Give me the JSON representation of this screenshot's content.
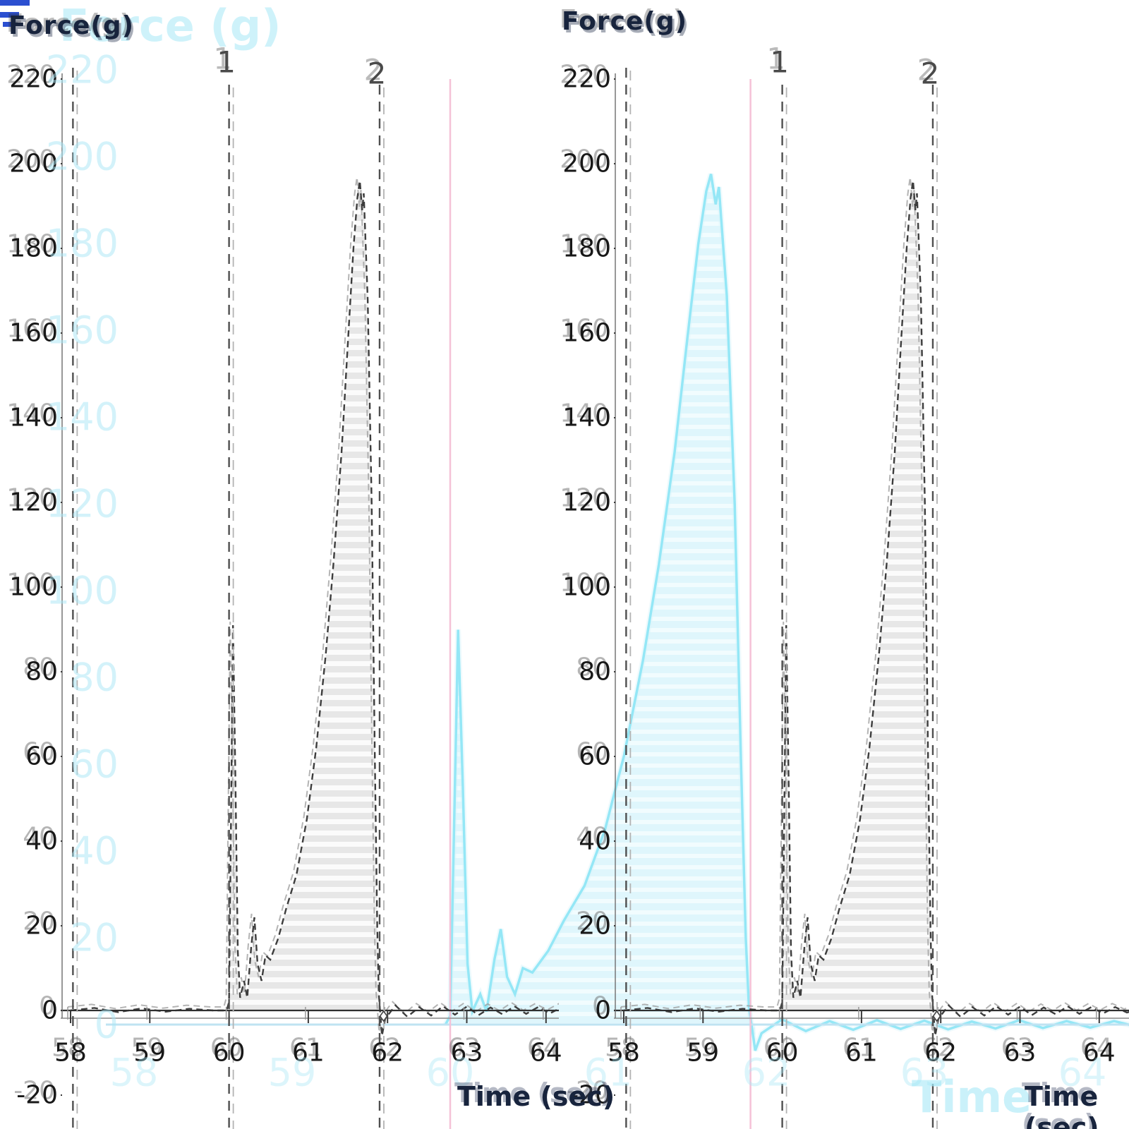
{
  "colors": {
    "background": "#ffffff",
    "curve_stroke": "#3d3d3d",
    "curve_ghost_stroke": "#9b9b9b",
    "gray_fill": "#e6e6e6",
    "gray_fill_alt": "#fbfbfb",
    "cyan_stroke": "#8fe6f5",
    "cyan_fill": "#d9f5fb",
    "cyan_fill_alt": "#eefcfe",
    "pink_line": "#f5c2d7",
    "ghost_axis_line": "#bfe3f2",
    "marker_dash": "#4f4f4f",
    "marker_dash_twin": "#b3b3b3",
    "axis_line": "#2f2f2f",
    "axis_line_twin": "#9a9a9a",
    "text_dark": "#181818",
    "title_navy": "#18243d",
    "title_blue_fragment": "#2b4fd0",
    "ghost_text_cyan": "#a9e7f6"
  },
  "left_panel": {
    "y_title": "Force(g)",
    "x_title": "Time (sec)"
  },
  "right_panel": {
    "y_title": "Force(g)",
    "x_title": "Time (sec)"
  },
  "ghost": {
    "y_title": "Force (g)",
    "x_title": "Time (sec)"
  },
  "chart_data": {
    "type": "area",
    "title": "",
    "ylabel": "Force(g)",
    "xlabel": "Time (sec)",
    "xlim": [
      58,
      64.5
    ],
    "ylim": [
      -20,
      220
    ],
    "grid": false,
    "panels": [
      "left",
      "right"
    ],
    "x_ticks": [
      58,
      59,
      60,
      61,
      62,
      63,
      64
    ],
    "y_ticks": [
      220,
      200,
      180,
      160,
      140,
      120,
      100,
      80,
      60,
      40,
      20,
      0,
      -20
    ],
    "markers": [
      {
        "label": "",
        "time": 58.03
      },
      {
        "label": "1",
        "time": 60.0
      },
      {
        "label": "2",
        "time": 61.9
      }
    ],
    "anchor_diamond_time": 61.95,
    "fill_range": [
      59.99,
      61.93
    ],
    "series": [
      {
        "name": "force-time-curve",
        "points": [
          [
            58.0,
            0
          ],
          [
            58.3,
            0.6
          ],
          [
            58.6,
            -0.4
          ],
          [
            58.9,
            0.5
          ],
          [
            59.2,
            -0.3
          ],
          [
            59.5,
            0.4
          ],
          [
            59.8,
            0
          ],
          [
            59.97,
            0
          ],
          [
            60.0,
            2
          ],
          [
            60.03,
            55
          ],
          [
            60.05,
            91
          ],
          [
            60.08,
            55
          ],
          [
            60.11,
            14
          ],
          [
            60.14,
            3
          ],
          [
            60.19,
            7
          ],
          [
            60.23,
            3
          ],
          [
            60.28,
            15
          ],
          [
            60.32,
            22
          ],
          [
            60.36,
            11
          ],
          [
            60.41,
            7
          ],
          [
            60.46,
            13
          ],
          [
            60.52,
            12
          ],
          [
            60.62,
            17
          ],
          [
            60.72,
            24
          ],
          [
            60.85,
            32
          ],
          [
            60.98,
            45
          ],
          [
            61.1,
            62
          ],
          [
            61.22,
            84
          ],
          [
            61.32,
            106
          ],
          [
            61.42,
            132
          ],
          [
            61.5,
            158
          ],
          [
            61.57,
            180
          ],
          [
            61.62,
            192
          ],
          [
            61.65,
            196
          ],
          [
            61.68,
            189
          ],
          [
            61.7,
            193
          ],
          [
            61.75,
            168
          ],
          [
            61.8,
            120
          ],
          [
            61.84,
            60
          ],
          [
            61.87,
            20
          ],
          [
            61.89,
            4
          ],
          [
            61.93,
            -6
          ],
          [
            61.97,
            -2
          ],
          [
            62.1,
            1.2
          ],
          [
            62.25,
            -1.5
          ],
          [
            62.4,
            0.8
          ],
          [
            62.55,
            -1.2
          ],
          [
            62.7,
            1.0
          ],
          [
            62.85,
            -1.0
          ],
          [
            63.0,
            0.9
          ],
          [
            63.15,
            -1.1
          ],
          [
            63.3,
            0.7
          ],
          [
            63.45,
            -0.9
          ],
          [
            63.6,
            1.0
          ],
          [
            63.75,
            -0.8
          ],
          [
            63.9,
            0.8
          ],
          [
            64.05,
            -0.7
          ],
          [
            64.2,
            0.8
          ],
          [
            64.35,
            -0.5
          ],
          [
            64.5,
            0.3
          ]
        ]
      }
    ],
    "ghost_overlay": {
      "description": "pale cyan duplicate of left panel curve stretched ~2x horizontally (video-resize glitch)",
      "pink_marker_times": [
        60.0,
        61.9
      ],
      "x_tick_ghosts": [
        58,
        59,
        60,
        61,
        62,
        63,
        64
      ],
      "y_tick_ghosts": [
        220,
        200,
        180,
        160,
        140,
        120,
        100,
        80,
        60,
        40,
        20,
        0
      ]
    }
  }
}
